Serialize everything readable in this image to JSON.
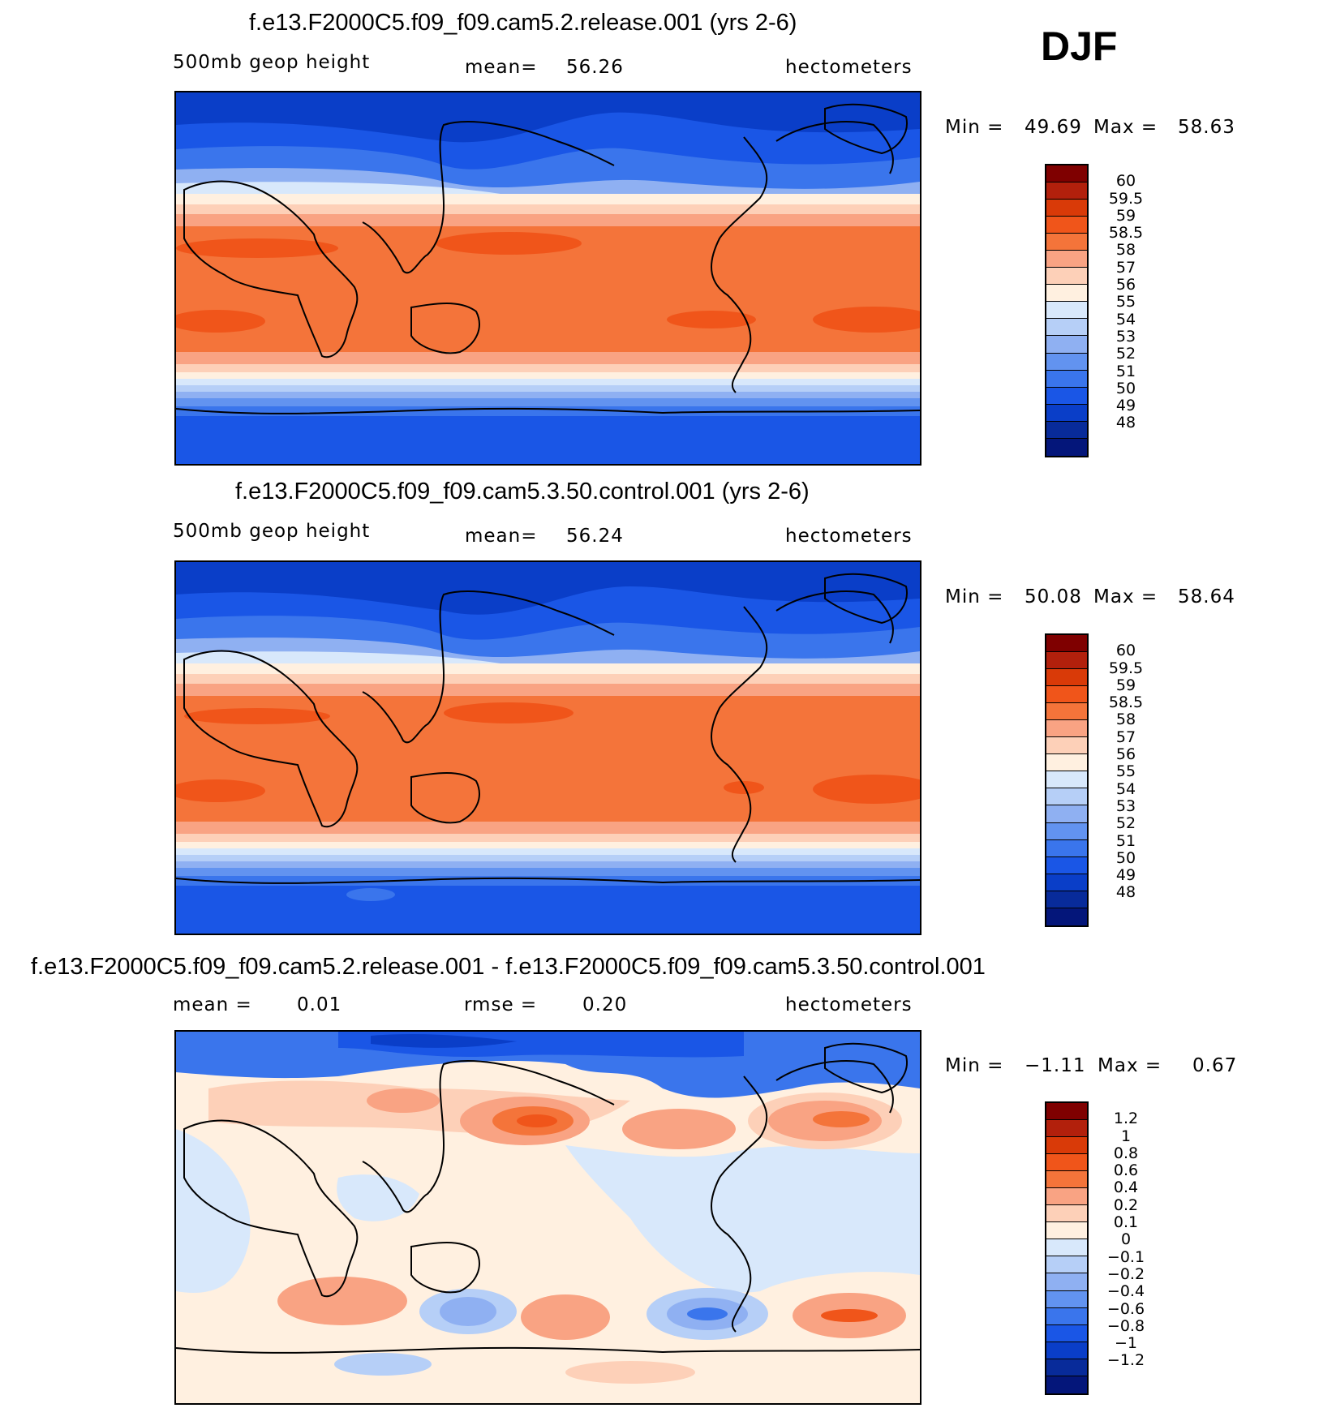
{
  "season": "DJF",
  "panels": [
    {
      "id": "release",
      "title": "f.e13.F2000C5.f09_f09.cam5.2.release.001 (yrs 2-6)",
      "variable": "500mb geop height",
      "stat_label": "mean=",
      "stat_value": "56.26",
      "units": "hectometers",
      "min_label": "Min =",
      "min_value": "49.69",
      "max_label": "Max =",
      "max_value": "58.63",
      "colorbar": {
        "colors": [
          "#7f0000",
          "#b2200c",
          "#d93a08",
          "#f0551a",
          "#f4743a",
          "#f9a383",
          "#fdd0b8",
          "#fff0e0",
          "#d8e8fb",
          "#b6cff7",
          "#8fb0f2",
          "#6293f0",
          "#3a75ec",
          "#1a56e6",
          "#0a3ec8",
          "#082b9a",
          "#04167a"
        ],
        "labels": [
          "60",
          "59.5",
          "59",
          "58.5",
          "58",
          "57",
          "56",
          "55",
          "54",
          "53",
          "52",
          "51",
          "50",
          "49",
          "48"
        ]
      }
    },
    {
      "id": "control",
      "title": "f.e13.F2000C5.f09_f09.cam5.3.50.control.001 (yrs 2-6)",
      "variable": "500mb geop height",
      "stat_label": "mean=",
      "stat_value": "56.24",
      "units": "hectometers",
      "min_label": "Min =",
      "min_value": "50.08",
      "max_label": "Max =",
      "max_value": "58.64",
      "colorbar": {
        "colors": [
          "#7f0000",
          "#b2200c",
          "#d93a08",
          "#f0551a",
          "#f4743a",
          "#f9a383",
          "#fdd0b8",
          "#fff0e0",
          "#d8e8fb",
          "#b6cff7",
          "#8fb0f2",
          "#6293f0",
          "#3a75ec",
          "#1a56e6",
          "#0a3ec8",
          "#082b9a",
          "#04167a"
        ],
        "labels": [
          "60",
          "59.5",
          "59",
          "58.5",
          "58",
          "57",
          "56",
          "55",
          "54",
          "53",
          "52",
          "51",
          "50",
          "49",
          "48"
        ]
      }
    },
    {
      "id": "difference",
      "title": "f.e13.F2000C5.f09_f09.cam5.2.release.001 - f.e13.F2000C5.f09_f09.cam5.3.50.control.001",
      "variable": "mean =",
      "variable_value": "0.01",
      "stat_label": "rmse =",
      "stat_value": "0.20",
      "units": "hectometers",
      "min_label": "Min =",
      "min_value": "−1.11",
      "max_label": "Max =",
      "max_value": "0.67",
      "colorbar": {
        "colors": [
          "#7f0000",
          "#b2200c",
          "#d93a08",
          "#f0551a",
          "#f4743a",
          "#f9a383",
          "#fdd0b8",
          "#fff0e0",
          "#d8e8fb",
          "#b6cff7",
          "#8fb0f2",
          "#6293f0",
          "#3a75ec",
          "#1a56e6",
          "#0a3ec8",
          "#082b9a",
          "#04167a"
        ],
        "labels": [
          "1.2",
          "1",
          "0.8",
          "0.6",
          "0.4",
          "0.2",
          "0.1",
          "0",
          "−0.1",
          "−0.2",
          "−0.4",
          "−0.6",
          "−0.8",
          "−1",
          "−1.2"
        ]
      }
    }
  ],
  "chart_data": [
    {
      "type": "heatmap",
      "title": "f.e13.F2000C5.f09_f09.cam5.2.release.001 (yrs 2-6)",
      "field": "500mb geop height",
      "units": "hectometers",
      "mean": 56.26,
      "min": 49.69,
      "max": 58.63,
      "levels": [
        48,
        49,
        50,
        51,
        52,
        53,
        54,
        55,
        56,
        57,
        58,
        58.5,
        59,
        59.5,
        60
      ]
    },
    {
      "type": "heatmap",
      "title": "f.e13.F2000C5.f09_f09.cam5.3.50.control.001 (yrs 2-6)",
      "field": "500mb geop height",
      "units": "hectometers",
      "mean": 56.24,
      "min": 50.08,
      "max": 58.64,
      "levels": [
        48,
        49,
        50,
        51,
        52,
        53,
        54,
        55,
        56,
        57,
        58,
        58.5,
        59,
        59.5,
        60
      ]
    },
    {
      "type": "heatmap",
      "title": "f.e13.F2000C5.f09_f09.cam5.2.release.001 - f.e13.F2000C5.f09_f09.cam5.3.50.control.001",
      "field": "difference",
      "units": "hectometers",
      "mean": 0.01,
      "rmse": 0.2,
      "min": -1.11,
      "max": 0.67,
      "levels": [
        -1.2,
        -1,
        -0.8,
        -0.6,
        -0.4,
        -0.2,
        -0.1,
        0,
        0.1,
        0.2,
        0.4,
        0.6,
        0.8,
        1,
        1.2
      ]
    }
  ]
}
